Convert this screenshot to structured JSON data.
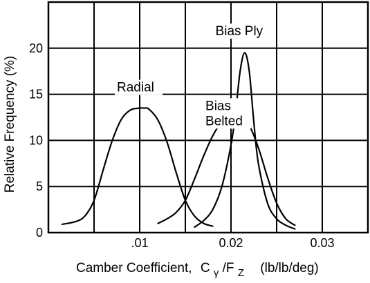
{
  "chart_data": {
    "type": "line",
    "xlabel": "Camber Coefficient,",
    "xlabel_symbol": {
      "base": "C",
      "base_sub": "γ",
      "slash": "/F",
      "tail_sub": "Z"
    },
    "xlabel_units": "(lb/lb/deg)",
    "ylabel": "Relative Frequency (%)",
    "xlim": [
      0.0,
      0.035
    ],
    "ylim": [
      0,
      25
    ],
    "grid": true,
    "x_ticks": [
      {
        "value": 0.01,
        "label": ".01"
      },
      {
        "value": 0.02,
        "label": "0.02"
      },
      {
        "value": 0.03,
        "label": "0.03"
      }
    ],
    "y_ticks": [
      {
        "value": 0,
        "label": "0"
      },
      {
        "value": 5,
        "label": "5"
      },
      {
        "value": 10,
        "label": "10"
      },
      {
        "value": 15,
        "label": "15"
      },
      {
        "value": 20,
        "label": "20"
      }
    ],
    "series": [
      {
        "name": "Radial",
        "x": [
          0.0015,
          0.003,
          0.004,
          0.005,
          0.006,
          0.007,
          0.008,
          0.009,
          0.01,
          0.0105,
          0.011,
          0.012,
          0.013,
          0.014,
          0.015,
          0.016,
          0.017,
          0.018
        ],
        "y": [
          0.9,
          1.2,
          1.8,
          3.5,
          6.8,
          10.0,
          12.3,
          13.3,
          13.5,
          13.5,
          13.4,
          12.2,
          9.8,
          6.5,
          3.5,
          1.8,
          1.0,
          0.7
        ]
      },
      {
        "name": "Bias Belted",
        "x": [
          0.012,
          0.013,
          0.014,
          0.015,
          0.016,
          0.017,
          0.018,
          0.019,
          0.02,
          0.021,
          0.022,
          0.023,
          0.024,
          0.025,
          0.026,
          0.027
        ],
        "y": [
          1.0,
          1.5,
          2.2,
          3.5,
          5.8,
          8.3,
          10.5,
          12.0,
          12.4,
          12.3,
          11.6,
          9.2,
          6.0,
          3.2,
          1.5,
          0.8
        ]
      },
      {
        "name": "Bias Ply",
        "x": [
          0.016,
          0.017,
          0.018,
          0.019,
          0.02,
          0.0205,
          0.021,
          0.0215,
          0.022,
          0.0225,
          0.023,
          0.024,
          0.025,
          0.026,
          0.027
        ],
        "y": [
          0.6,
          1.3,
          2.5,
          5.0,
          9.5,
          13.0,
          17.5,
          19.5,
          17.5,
          12.0,
          7.5,
          3.2,
          1.5,
          0.8,
          0.4
        ]
      }
    ],
    "series_labels": [
      {
        "lines": [
          "Radial"
        ],
        "anchor_x": 0.0075,
        "anchor_y": 15.3
      },
      {
        "lines": [
          "Bias",
          "Belted"
        ],
        "anchor_x": 0.0172,
        "anchor_y": 13.3
      },
      {
        "lines": [
          "Bias Ply"
        ],
        "anchor_x": 0.0183,
        "anchor_y": 21.4
      }
    ]
  }
}
